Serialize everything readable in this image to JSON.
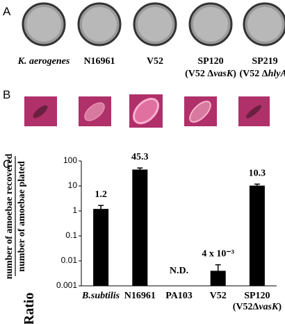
{
  "panel_a": {
    "label": "A",
    "strains": [
      {
        "name": "K. aerogenes",
        "note": null
      },
      {
        "name": "N16961",
        "note": null
      },
      {
        "name": "V52",
        "note": null
      },
      {
        "name": "SP120",
        "note": [
          "(V52 Δ",
          "vasK",
          ")"
        ]
      },
      {
        "name": "SP219",
        "note": [
          "(V52 Δ",
          "hlyA",
          ")"
        ]
      }
    ]
  },
  "panel_b": {
    "label": "B"
  },
  "chart_data": {
    "type": "bar",
    "panel_label": "C",
    "ylabel_top": "number of amoebae recovered",
    "ylabel_bottom": "number of amoebae plated",
    "ylabel_main": "Ratio",
    "categories": [
      "B.subtilis",
      "N16961",
      "PA103",
      "V52",
      "SP120"
    ],
    "category_notes": [
      null,
      null,
      null,
      null,
      [
        "(V52Δ",
        "vasK",
        ")"
      ]
    ],
    "values": [
      1.2,
      45.3,
      null,
      0.004,
      10.3
    ],
    "errors": [
      0.45,
      7,
      null,
      0.003,
      1.5
    ],
    "value_labels": [
      "1.2",
      "45.3",
      "N.D.",
      "4 x 10⁻³",
      "10.3"
    ],
    "color": "#000000",
    "log_scale": true,
    "ylim": [
      0.001,
      100
    ],
    "yticks": [
      0.001,
      0.01,
      0.1,
      1,
      10,
      100
    ]
  }
}
